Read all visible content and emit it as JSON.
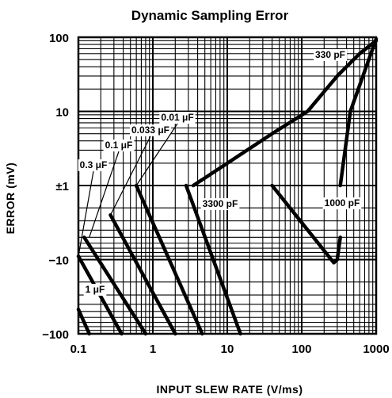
{
  "chart_data": {
    "type": "line",
    "title": "Dynamic Sampling Error",
    "xlabel": "INPUT SLEW RATE (V/ms)",
    "ylabel": "ERROR (mV)",
    "x_scale": "log",
    "y_scale": "symmetric-log",
    "xlim": [
      0.1,
      1000
    ],
    "ylim": [
      -100,
      100
    ],
    "grid": true,
    "x_ticks": [
      {
        "value": 0.1,
        "label": "0.1"
      },
      {
        "value": 1,
        "label": "1"
      },
      {
        "value": 10,
        "label": "10"
      },
      {
        "value": 100,
        "label": "100"
      },
      {
        "value": 1000,
        "label": "1000"
      }
    ],
    "y_ticks": [
      {
        "value": 100,
        "label": "100"
      },
      {
        "value": 10,
        "label": "10"
      },
      {
        "value": 1,
        "label": "±1"
      },
      {
        "value": -10,
        "label": "−10"
      },
      {
        "value": -100,
        "label": "−100"
      }
    ],
    "series": [
      {
        "name": "1 μF",
        "points": [
          [
            0.1,
            -47
          ],
          [
            0.14,
            -100
          ]
        ]
      },
      {
        "name": "0.3 μF",
        "points": [
          [
            0.1,
            -9
          ],
          [
            0.38,
            -100
          ]
        ]
      },
      {
        "name": "0.1 μF",
        "points": [
          [
            0.12,
            -5
          ],
          [
            0.8,
            -100
          ]
        ]
      },
      {
        "name": "0.033 μF",
        "points": [
          [
            0.27,
            -2.5
          ],
          [
            2.0,
            -100
          ]
        ]
      },
      {
        "name": "0.01 μF",
        "points": [
          [
            0.6,
            -1
          ],
          [
            4.6,
            -100
          ]
        ]
      },
      {
        "name": "3300 pF",
        "points": [
          [
            2.8,
            -1
          ],
          [
            15,
            -100
          ]
        ]
      },
      {
        "name": "1000 pF",
        "points": [
          [
            40,
            -1
          ],
          [
            270,
            -11
          ],
          [
            300,
            -10
          ],
          [
            330,
            -5
          ]
        ]
      },
      {
        "name": "330 pF",
        "points": [
          [
            3.5,
            1
          ],
          [
            10,
            2
          ],
          [
            40,
            5
          ],
          [
            120,
            10
          ],
          [
            300,
            30
          ],
          [
            600,
            60
          ],
          [
            1000,
            90
          ]
        ]
      }
    ],
    "extra_segments": [
      {
        "series": "1000 pF",
        "points": [
          [
            330,
            1
          ],
          [
            450,
            10
          ],
          [
            1000,
            95
          ]
        ]
      }
    ]
  }
}
